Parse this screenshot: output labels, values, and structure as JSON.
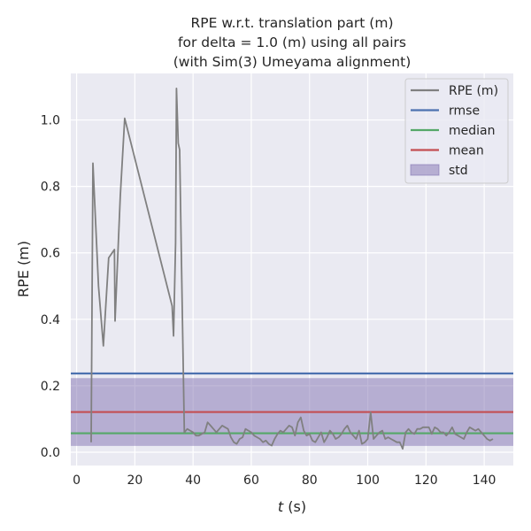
{
  "chart_data": {
    "type": "line",
    "title_lines": [
      "RPE w.r.t. translation part (m)",
      "for delta = 1.0 (m) using all pairs",
      "(with Sim(3) Umeyama alignment)"
    ],
    "xlabel_italic": "t",
    "xlabel_rest": " (s)",
    "ylabel": "RPE (m)",
    "xlim": [
      -2,
      150
    ],
    "ylim": [
      -0.04,
      1.14
    ],
    "xticks": [
      0,
      20,
      40,
      60,
      80,
      100,
      120,
      140
    ],
    "yticks": [
      0.0,
      0.2,
      0.4,
      0.6,
      0.8,
      1.0
    ],
    "grid": true,
    "legend_position": "top-right",
    "colors": {
      "background": "#eaeaf2",
      "rpe": "#808080",
      "rmse": "#4c72b0",
      "median": "#55a868",
      "mean": "#c44e52",
      "std": "#8172b2"
    },
    "legend": [
      {
        "label": "RPE (m)",
        "kind": "line",
        "color": "#808080"
      },
      {
        "label": "rmse",
        "kind": "line",
        "color": "#4c72b0"
      },
      {
        "label": "median",
        "kind": "line",
        "color": "#55a868"
      },
      {
        "label": "mean",
        "kind": "line",
        "color": "#c44e52"
      },
      {
        "label": "std",
        "kind": "patch",
        "color": "#8172b2"
      }
    ],
    "stats": {
      "rmse": 0.237,
      "median": 0.057,
      "mean": 0.121,
      "std": 0.102
    },
    "series": [
      {
        "name": "RPE (m)",
        "x": [
          5.0,
          5.6,
          7.5,
          9.2,
          11.0,
          13.0,
          13.2,
          15.0,
          16.5,
          32.8,
          33.3,
          34.0,
          34.3,
          34.9,
          35.4,
          36.0,
          37.0,
          38.0,
          39.0,
          40.0,
          41.0,
          42.0,
          43.0,
          44.0,
          45.0,
          46.0,
          47.0,
          48.0,
          49.0,
          50.0,
          51.0,
          52.0,
          53.0,
          54.0,
          55.0,
          56.0,
          57.0,
          58.0,
          59.0,
          60.0,
          61.0,
          62.0,
          63.0,
          64.0,
          65.0,
          66.0,
          67.0,
          68.0,
          69.0,
          70.0,
          71.0,
          72.0,
          73.0,
          74.0,
          75.0,
          76.0,
          77.0,
          78.0,
          79.0,
          80.0,
          81.0,
          82.0,
          83.0,
          84.0,
          85.0,
          86.0,
          87.0,
          88.0,
          89.0,
          90.0,
          91.0,
          92.0,
          93.0,
          94.0,
          95.0,
          96.0,
          97.0,
          98.0,
          99.0,
          100.0,
          101.0,
          102.0,
          103.0,
          104.0,
          105.0,
          106.0,
          107.0,
          108.0,
          109.0,
          110.0,
          111.0,
          112.0,
          113.0,
          114.0,
          115.0,
          116.0,
          117.0,
          118.0,
          119.0,
          120.0,
          121.0,
          122.0,
          123.0,
          124.0,
          125.0,
          126.0,
          127.0,
          128.0,
          129.0,
          130.0,
          131.0,
          132.0,
          133.0,
          134.0,
          135.0,
          136.0,
          137.0,
          138.0,
          139.0,
          140.0,
          141.0,
          142.0,
          143.0
        ],
        "y": [
          0.03,
          0.87,
          0.5,
          0.32,
          0.585,
          0.61,
          0.395,
          0.77,
          1.005,
          0.44,
          0.35,
          0.63,
          1.095,
          0.93,
          0.91,
          0.58,
          0.06,
          0.07,
          0.065,
          0.06,
          0.05,
          0.05,
          0.055,
          0.06,
          0.09,
          0.08,
          0.07,
          0.06,
          0.07,
          0.08,
          0.075,
          0.07,
          0.045,
          0.03,
          0.025,
          0.04,
          0.045,
          0.07,
          0.065,
          0.06,
          0.05,
          0.045,
          0.04,
          0.03,
          0.035,
          0.025,
          0.02,
          0.04,
          0.055,
          0.065,
          0.06,
          0.07,
          0.08,
          0.075,
          0.05,
          0.09,
          0.105,
          0.065,
          0.05,
          0.055,
          0.035,
          0.03,
          0.045,
          0.06,
          0.03,
          0.045,
          0.065,
          0.055,
          0.04,
          0.045,
          0.055,
          0.07,
          0.08,
          0.06,
          0.05,
          0.04,
          0.065,
          0.025,
          0.03,
          0.04,
          0.12,
          0.04,
          0.05,
          0.06,
          0.065,
          0.04,
          0.045,
          0.04,
          0.035,
          0.03,
          0.03,
          0.01,
          0.06,
          0.07,
          0.06,
          0.055,
          0.07,
          0.07,
          0.075,
          0.075,
          0.075,
          0.055,
          0.075,
          0.07,
          0.06,
          0.06,
          0.05,
          0.06,
          0.075,
          0.055,
          0.05,
          0.045,
          0.04,
          0.06,
          0.075,
          0.07,
          0.065,
          0.07,
          0.06,
          0.05,
          0.04,
          0.035,
          0.04
        ]
      }
    ]
  }
}
